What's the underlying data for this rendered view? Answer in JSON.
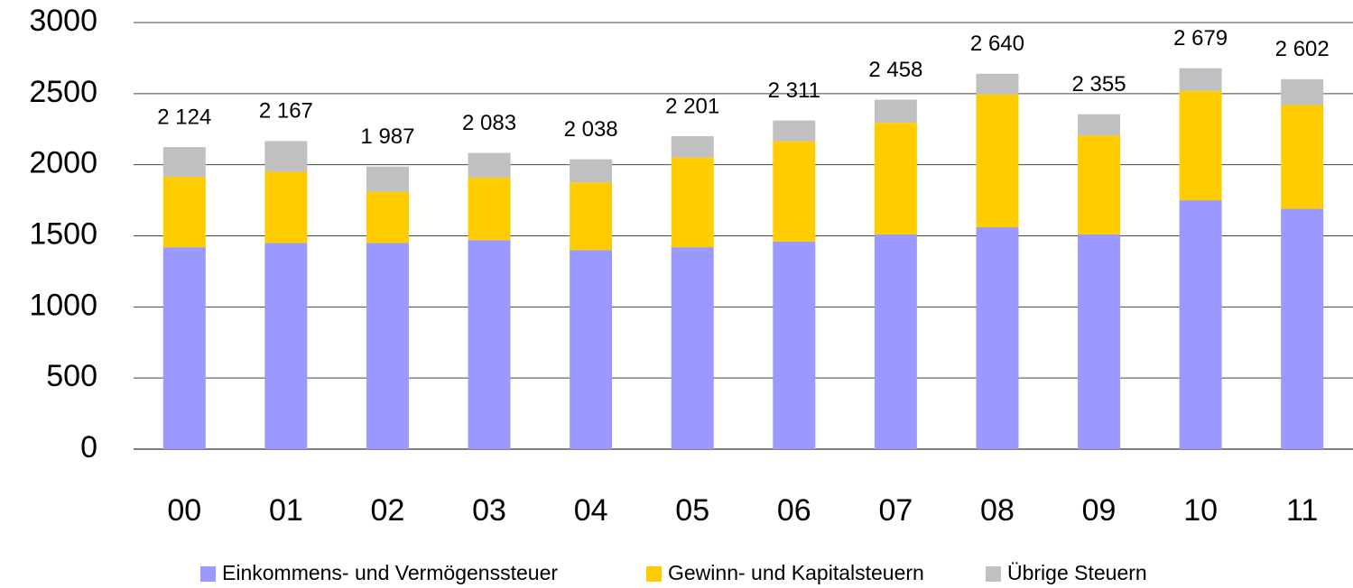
{
  "chart_data": {
    "type": "stacked_bar",
    "categories": [
      "00",
      "01",
      "02",
      "03",
      "04",
      "05",
      "06",
      "07",
      "08",
      "09",
      "10",
      "11"
    ],
    "series": [
      {
        "name": "Einkommens- und Vermögenssteuer",
        "color": "#9999ff",
        "values": [
          1420,
          1450,
          1450,
          1470,
          1400,
          1420,
          1460,
          1510,
          1560,
          1510,
          1750,
          1690
        ]
      },
      {
        "name": "Gewinn- und Kapitalsteuern",
        "color": "#ffcc00",
        "values": [
          495,
          500,
          360,
          440,
          475,
          630,
          705,
          785,
          935,
          695,
          770,
          730
        ]
      },
      {
        "name": "Übrige Steuern",
        "color": "#c0c0c0",
        "values": [
          209,
          217,
          177,
          173,
          163,
          151,
          146,
          163,
          145,
          150,
          159,
          182
        ]
      }
    ],
    "totals": {
      "values": [
        2124,
        2167,
        1987,
        2083,
        2038,
        2201,
        2311,
        2458,
        2640,
        2355,
        2679,
        2602
      ],
      "value_labels": [
        "2 124",
        "2 167",
        "1 987",
        "2 083",
        "2 038",
        "2 201",
        "2 311",
        "2 458",
        "2 640",
        "2 355",
        "2 679",
        "2 602"
      ]
    },
    "ylim": [
      0,
      3000
    ],
    "yticks": [
      0,
      500,
      1000,
      1500,
      2000,
      2500,
      3000
    ],
    "grid": true,
    "legend": "bottom"
  }
}
